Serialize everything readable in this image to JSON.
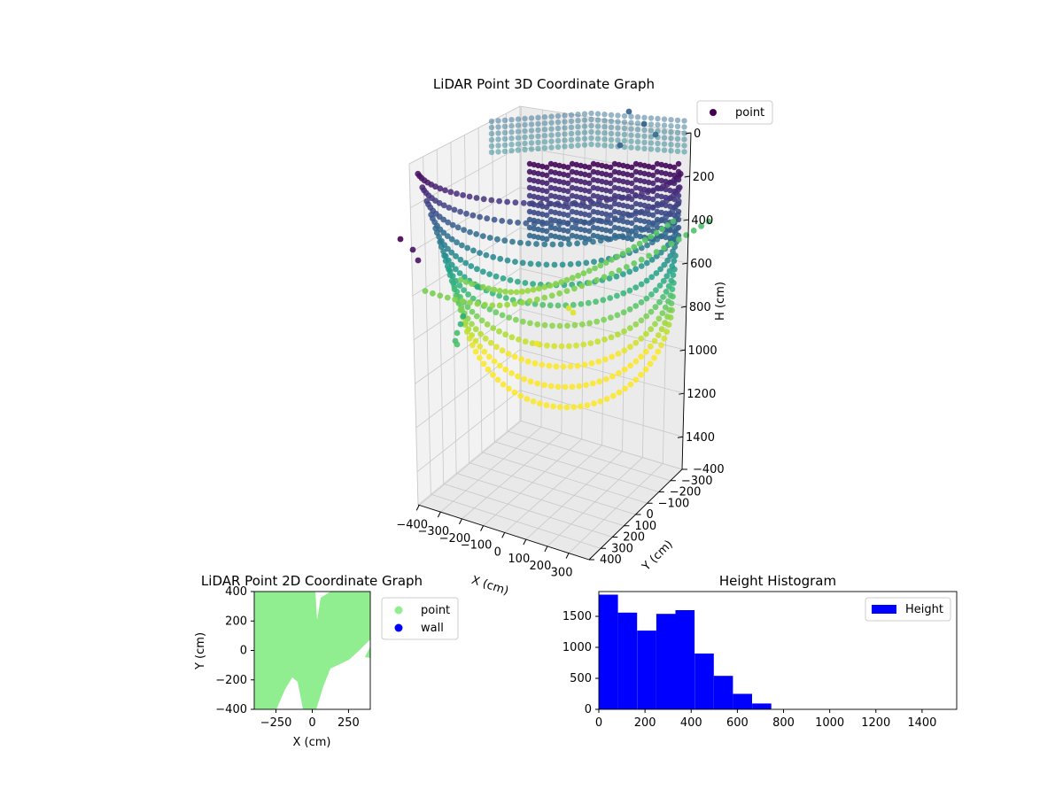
{
  "chart_data": [
    {
      "id": "lidar3d",
      "type": "scatter",
      "title": "LiDAR Point 3D Coordinate Graph",
      "xlabel": "X (cm)",
      "ylabel": "Y (cm)",
      "zlabel": "H (cm)",
      "xticks": [
        "−400",
        "−300",
        "−200",
        "−100",
        "0",
        "100",
        "200",
        "300"
      ],
      "yticks": [
        "−400",
        "−300",
        "−200",
        "−100",
        "0",
        "100",
        "200",
        "300",
        "400"
      ],
      "zticks": [
        "0",
        "200",
        "400",
        "600",
        "800",
        "1000",
        "1200",
        "1400"
      ],
      "xlim": [
        -400,
        400
      ],
      "ylim": [
        -400,
        400
      ],
      "zlim": [
        0,
        1550
      ],
      "z_inverted": true,
      "colormap": "viridis",
      "legend": {
        "entries": [
          "point"
        ],
        "placement": "outside-upper-right"
      },
      "grid": true
    },
    {
      "id": "lidar2d",
      "type": "scatter",
      "title": "LiDAR Point 2D Coordinate Graph",
      "xlabel": "X (cm)",
      "ylabel": "Y (cm)",
      "xticks": [
        "−250",
        "0",
        "250"
      ],
      "yticks": [
        "400",
        "200",
        "0",
        "−200",
        "−400"
      ],
      "xlim": [
        -400,
        400
      ],
      "ylim": [
        -400,
        400
      ],
      "series": [
        {
          "name": "point",
          "color": "#90ee90"
        },
        {
          "name": "wall",
          "color": "#0000ff"
        }
      ],
      "legend": {
        "placement": "outside-upper-right"
      },
      "grid": false
    },
    {
      "id": "height_hist",
      "type": "bar",
      "title": "Height Histogram",
      "xlim": [
        0,
        1550
      ],
      "ylim": [
        0,
        1900
      ],
      "xticks": [
        "0",
        "200",
        "400",
        "600",
        "800",
        "1000",
        "1200",
        "1400"
      ],
      "yticks": [
        "0",
        "500",
        "1000",
        "1500"
      ],
      "bins": [
        {
          "from": 0,
          "to": 83,
          "count": 1850
        },
        {
          "from": 83,
          "to": 166,
          "count": 1560
        },
        {
          "from": 166,
          "to": 249,
          "count": 1270
        },
        {
          "from": 249,
          "to": 332,
          "count": 1540
        },
        {
          "from": 332,
          "to": 415,
          "count": 1600
        },
        {
          "from": 415,
          "to": 498,
          "count": 900
        },
        {
          "from": 498,
          "to": 581,
          "count": 540
        },
        {
          "from": 581,
          "to": 664,
          "count": 250
        },
        {
          "from": 664,
          "to": 747,
          "count": 95
        }
      ],
      "series": [
        {
          "name": "Height",
          "color": "#0000ff"
        }
      ],
      "legend": {
        "placement": "upper-right"
      },
      "grid": false
    }
  ]
}
